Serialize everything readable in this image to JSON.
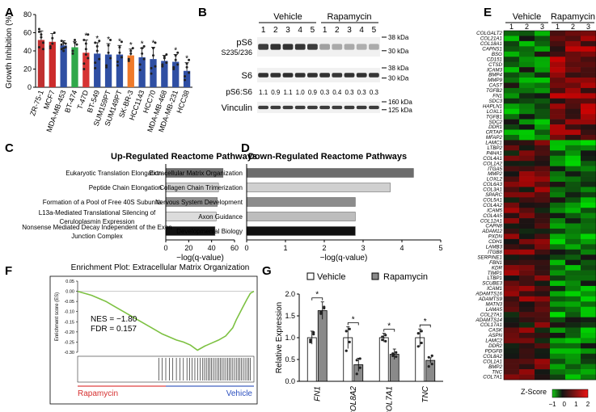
{
  "panel_letters": [
    "A",
    "B",
    "C",
    "D",
    "E",
    "F",
    "G"
  ],
  "chart_data": [
    {
      "panel": "A",
      "type": "bar",
      "ylabel": "Growth Inhibition (%)",
      "ylim": [
        0,
        80
      ],
      "yticks": [
        "0",
        "20",
        "40",
        "60",
        "80"
      ],
      "categories": [
        "ZR-75-1",
        "MCF7",
        "MDA-MB-453",
        "BT-474",
        "T-47D",
        "BT-549",
        "SUM159PT",
        "SUM149PT",
        "SK-BR-3",
        "HCC1143",
        "HCC70",
        "MDA-MB-468",
        "MDA-MB-231",
        "HCC38"
      ],
      "values": [
        52,
        50,
        46,
        44,
        38,
        37,
        36,
        36,
        35,
        33,
        31,
        29,
        28,
        18
      ],
      "errors": [
        10,
        9,
        5,
        6,
        14,
        12,
        12,
        10,
        7,
        10,
        13,
        6,
        8,
        9
      ],
      "colors": [
        "#c03030",
        "#cc2b2b",
        "#2f4fa3",
        "#2fa84a",
        "#d63333",
        "#2f4fa3",
        "#2f4fa3",
        "#2f4fa3",
        "#ef7a2a",
        "#2f4fa3",
        "#2f4fa3",
        "#2f4fa3",
        "#2f4fa3",
        "#2f4fa3"
      ],
      "significance": [
        "",
        "",
        "",
        "",
        "*",
        "*",
        "*",
        "*",
        "*",
        "*",
        "*",
        "",
        "*",
        "*"
      ],
      "point_offsets": [
        [
          -8,
          6,
          -3,
          12,
          3,
          -10,
          9
        ],
        [
          -5,
          4,
          10,
          -7,
          -2
        ],
        [
          -4,
          3,
          -2,
          5,
          -6,
          2,
          1,
          -3
        ],
        [
          -7,
          5,
          3,
          -4,
          8
        ],
        [
          -18,
          10,
          20,
          -12,
          4,
          -6,
          14,
          -2
        ],
        [
          -16,
          8,
          14,
          -10,
          3,
          -6,
          12
        ],
        [
          -14,
          10,
          16,
          -12,
          2,
          -4
        ],
        [
          -12,
          8,
          14,
          -8,
          2,
          -3
        ],
        [
          -6,
          5,
          8,
          -4,
          2
        ],
        [
          -14,
          10,
          12,
          -8,
          4,
          -2
        ],
        [
          -16,
          12,
          18,
          -10,
          4,
          -8
        ],
        [
          -6,
          5,
          7,
          -4,
          3,
          -2
        ],
        [
          -8,
          7,
          10,
          -6,
          2,
          -3
        ],
        [
          -10,
          8,
          12,
          -6,
          4,
          -2
        ]
      ]
    },
    {
      "panel": "C",
      "type": "bar",
      "title": "Up-Regulated Reactome Pathways",
      "xlabel": "−log(q-value)",
      "xlim": [
        0,
        60
      ],
      "xticks": [
        "0",
        "20",
        "40",
        "60"
      ],
      "categories": [
        "Eukaryotic Translation Elongation",
        "Peptide Chain Elongation",
        "Formation of a Pool of Free 40S Subunits",
        "L13a-Mediated Translational Silencing of|Ceruloplasmin Expression",
        "Nonsense Mediated Decay Independent of the Exon|Junction Complex"
      ],
      "values": [
        50,
        46,
        45,
        44,
        43
      ],
      "colors": [
        "#6c6c6c",
        "#cfcfcf",
        "#8c8c8c",
        "#dcdcdc",
        "#111111"
      ]
    },
    {
      "panel": "D",
      "type": "bar",
      "title": "Down-Regulated Reactome Pathways",
      "xlabel": "−log(q-value)",
      "xlim": [
        0,
        5
      ],
      "xticks": [
        "0",
        "1",
        "2",
        "3",
        "4",
        "5"
      ],
      "categories": [
        "Extracellular Matrix Organization",
        "Collagen Chain Trimerization",
        "Nervous System Development",
        "Axon Guidance",
        "Developmental Biology"
      ],
      "values": [
        4.3,
        3.7,
        2.8,
        2.8,
        2.8
      ],
      "colors": [
        "#6c6c6c",
        "#d0d0d0",
        "#8c8c8c",
        "#bdbdbd",
        "#111111"
      ]
    },
    {
      "panel": "F",
      "type": "line",
      "title": "Enrichment Plot: Extracellular Matrix Organization",
      "ylabel": "Enrichment score (ES)",
      "ylim": [
        -0.3,
        0.05
      ],
      "yticks": [
        "0.05",
        "0.00",
        "-0.05",
        "-0.10",
        "-0.15",
        "-0.20",
        "-0.25",
        "-0.30"
      ],
      "annotations": [
        "NES = −1.80",
        "FDR = 0.157"
      ],
      "left_label": "Rapamycin",
      "right_label": "Vehicle",
      "x": [
        0,
        0.04,
        0.08,
        0.12,
        0.16,
        0.2,
        0.24,
        0.28,
        0.32,
        0.36,
        0.4,
        0.44,
        0.48,
        0.52,
        0.56,
        0.6,
        0.64,
        0.68,
        0.72,
        0.76,
        0.8,
        0.84,
        0.88,
        0.9,
        0.93,
        0.96,
        0.98,
        1.0
      ],
      "values": [
        0.0,
        -0.01,
        -0.02,
        -0.035,
        -0.05,
        -0.07,
        -0.09,
        -0.11,
        -0.13,
        -0.15,
        -0.17,
        -0.19,
        -0.21,
        -0.225,
        -0.24,
        -0.25,
        -0.265,
        -0.29,
        -0.27,
        -0.255,
        -0.24,
        -0.22,
        -0.18,
        -0.14,
        -0.09,
        -0.04,
        -0.01,
        0.0
      ],
      "hits": [
        0.46,
        0.48,
        0.5,
        0.52,
        0.54,
        0.56,
        0.58,
        0.6,
        0.62,
        0.635,
        0.65,
        0.665,
        0.68,
        0.695,
        0.71,
        0.72,
        0.73,
        0.74,
        0.75,
        0.76,
        0.77,
        0.78,
        0.79,
        0.8,
        0.81,
        0.82,
        0.83,
        0.84,
        0.85,
        0.86,
        0.87,
        0.88,
        0.89,
        0.9,
        0.91,
        0.92,
        0.93,
        0.94,
        0.95,
        0.96,
        0.97,
        0.98
      ]
    },
    {
      "panel": "G",
      "type": "bar",
      "ylabel": "Relative Expression",
      "ylim": [
        0,
        2.0
      ],
      "yticks": [
        "0.0",
        "0.5",
        "1.0",
        "1.5",
        "2.0"
      ],
      "categories": [
        "FN1",
        "COL8A2",
        "COL7A1",
        "TNC"
      ],
      "series": [
        {
          "name": "Vehicle",
          "values": [
            1.0,
            1.0,
            1.0,
            1.0
          ],
          "errors": [
            0.15,
            0.25,
            0.1,
            0.2
          ],
          "color": "#ffffff"
        },
        {
          "name": "Rapamycin",
          "values": [
            1.62,
            0.38,
            0.62,
            0.48
          ],
          "errors": [
            0.2,
            0.15,
            0.12,
            0.06
          ],
          "color": "#8a8a8a"
        }
      ],
      "significance": [
        "*",
        "*",
        "*",
        "*"
      ]
    }
  ],
  "blot": {
    "groups": [
      "Vehicle",
      "Rapamycin"
    ],
    "lanes": [
      "1",
      "2",
      "3",
      "4",
      "5",
      "1",
      "2",
      "3",
      "4",
      "5"
    ],
    "rows": [
      {
        "label": "pS6",
        "sublabel": "S235/236",
        "markers": [
          "38 kDa",
          "30 kDa"
        ],
        "intensities": [
          0.85,
          0.9,
          0.9,
          0.88,
          0.85,
          0.35,
          0.3,
          0.3,
          0.28,
          0.3
        ]
      },
      {
        "label": "S6",
        "sublabel": "",
        "markers": [
          "38 kDa",
          "30 kDa"
        ],
        "intensities": [
          0.9,
          0.9,
          0.92,
          0.9,
          0.9,
          0.9,
          0.88,
          0.9,
          0.9,
          0.88
        ]
      },
      {
        "label": "Vinculin",
        "sublabel": "",
        "markers": [
          "160 kDa",
          "125 kDa"
        ],
        "intensities": [
          0.85,
          0.85,
          0.85,
          0.85,
          0.85,
          0.85,
          0.85,
          0.85,
          0.85,
          0.85
        ]
      }
    ],
    "ratio_label": "pS6:S6",
    "ratios": [
      "1.1",
      "0.9",
      "1.1",
      "1.0",
      "0.9",
      "0.3",
      "0.4",
      "0.3",
      "0.3",
      "0.3"
    ]
  },
  "heatmap": {
    "groups": [
      "Vehicle",
      "Rapamycin"
    ],
    "columns": [
      "1",
      "2",
      "3",
      "1",
      "2",
      "3"
    ],
    "genes": [
      "COLGALT2",
      "COL21A1",
      "COL18A1",
      "CAPNS1",
      "BSG",
      "CD151",
      "CTSD",
      "ICAM3",
      "BMP4",
      "MMP9",
      "CAST",
      "TGFB2",
      "FN1",
      "SDC3",
      "HAPLN1",
      "LOXL1",
      "TGFB1",
      "SDC2",
      "DDR1",
      "CRTAP",
      "MFAP2",
      "LAMC1",
      "LTBP2",
      "P4HA1",
      "COL4A1",
      "COL1A2",
      "ITGA5",
      "MMP2",
      "LOXL2",
      "COL6A3",
      "COL3A1",
      "SPARC",
      "COL5A1",
      "COL4A2",
      "ICAM5",
      "COL4A5",
      "COL12A1",
      "CAPN8",
      "ADAM12",
      "PXDN",
      "CDH1",
      "LAMB3",
      "ITGB8",
      "SERPINE1",
      "FBN1",
      "KDR",
      "TIMP1",
      "LTBP1",
      "SCUBE3",
      "ICAM1",
      "ADAMTS16",
      "ADAMTS9",
      "MATN3",
      "LAMA5",
      "COL27A1",
      "ADAMTS14",
      "COL17A1",
      "CASK",
      "ASPN",
      "LAMC2",
      "DDR2",
      "PDGFB",
      "COL8A2",
      "COL1A1",
      "BMP2",
      "TNC",
      "COL7A1"
    ],
    "legend_title": "Z-Score",
    "legend_ticks": [
      "−1",
      "0",
      "1",
      "2"
    ]
  }
}
